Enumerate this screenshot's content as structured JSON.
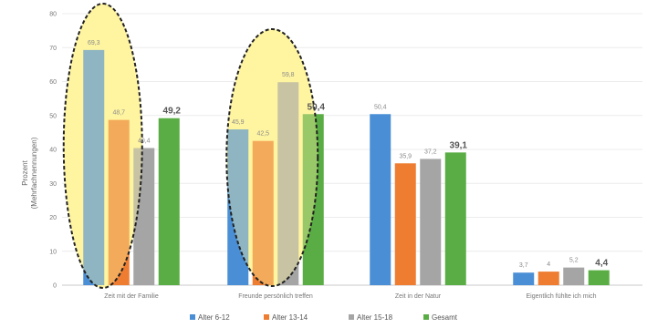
{
  "chart_data": {
    "type": "bar",
    "ylabel": "Prozent",
    "ylabel_sub": "(Mehrfachnennungen)",
    "ylim": [
      0,
      80
    ],
    "yticks": [
      0,
      10,
      20,
      30,
      40,
      50,
      60,
      70,
      80
    ],
    "grid": true,
    "legend_position": "bottom",
    "categories": [
      "Zeit mit der Familie",
      "Freunde persönlich treffen",
      "Zeit in der Natur",
      "Eigentlich fühlte ich mich"
    ],
    "series": [
      {
        "name": "Alter 6-12",
        "color": "#4a8fd6",
        "values": [
          69.3,
          45.9,
          50.4,
          3.7
        ],
        "labels": [
          "69,3",
          "45,9",
          "50,4",
          "3,7"
        ]
      },
      {
        "name": "Alter 13-14",
        "color": "#ee7d31",
        "values": [
          48.7,
          42.5,
          35.9,
          4.0
        ],
        "labels": [
          "48,7",
          "42,5",
          "35,9",
          "4"
        ]
      },
      {
        "name": "Alter 15-18",
        "color": "#a5a5a5",
        "values": [
          40.4,
          59.8,
          37.2,
          5.2
        ],
        "labels": [
          "40,4",
          "59,8",
          "37,2",
          "5,2"
        ]
      },
      {
        "name": "Gesamt",
        "color": "#5aad45",
        "values": [
          49.2,
          50.4,
          39.1,
          4.4
        ],
        "labels": [
          "49,2",
          "50,4",
          "39,1",
          "4,4"
        ]
      }
    ],
    "highlight_ellipses_color": "#fff5a0"
  }
}
